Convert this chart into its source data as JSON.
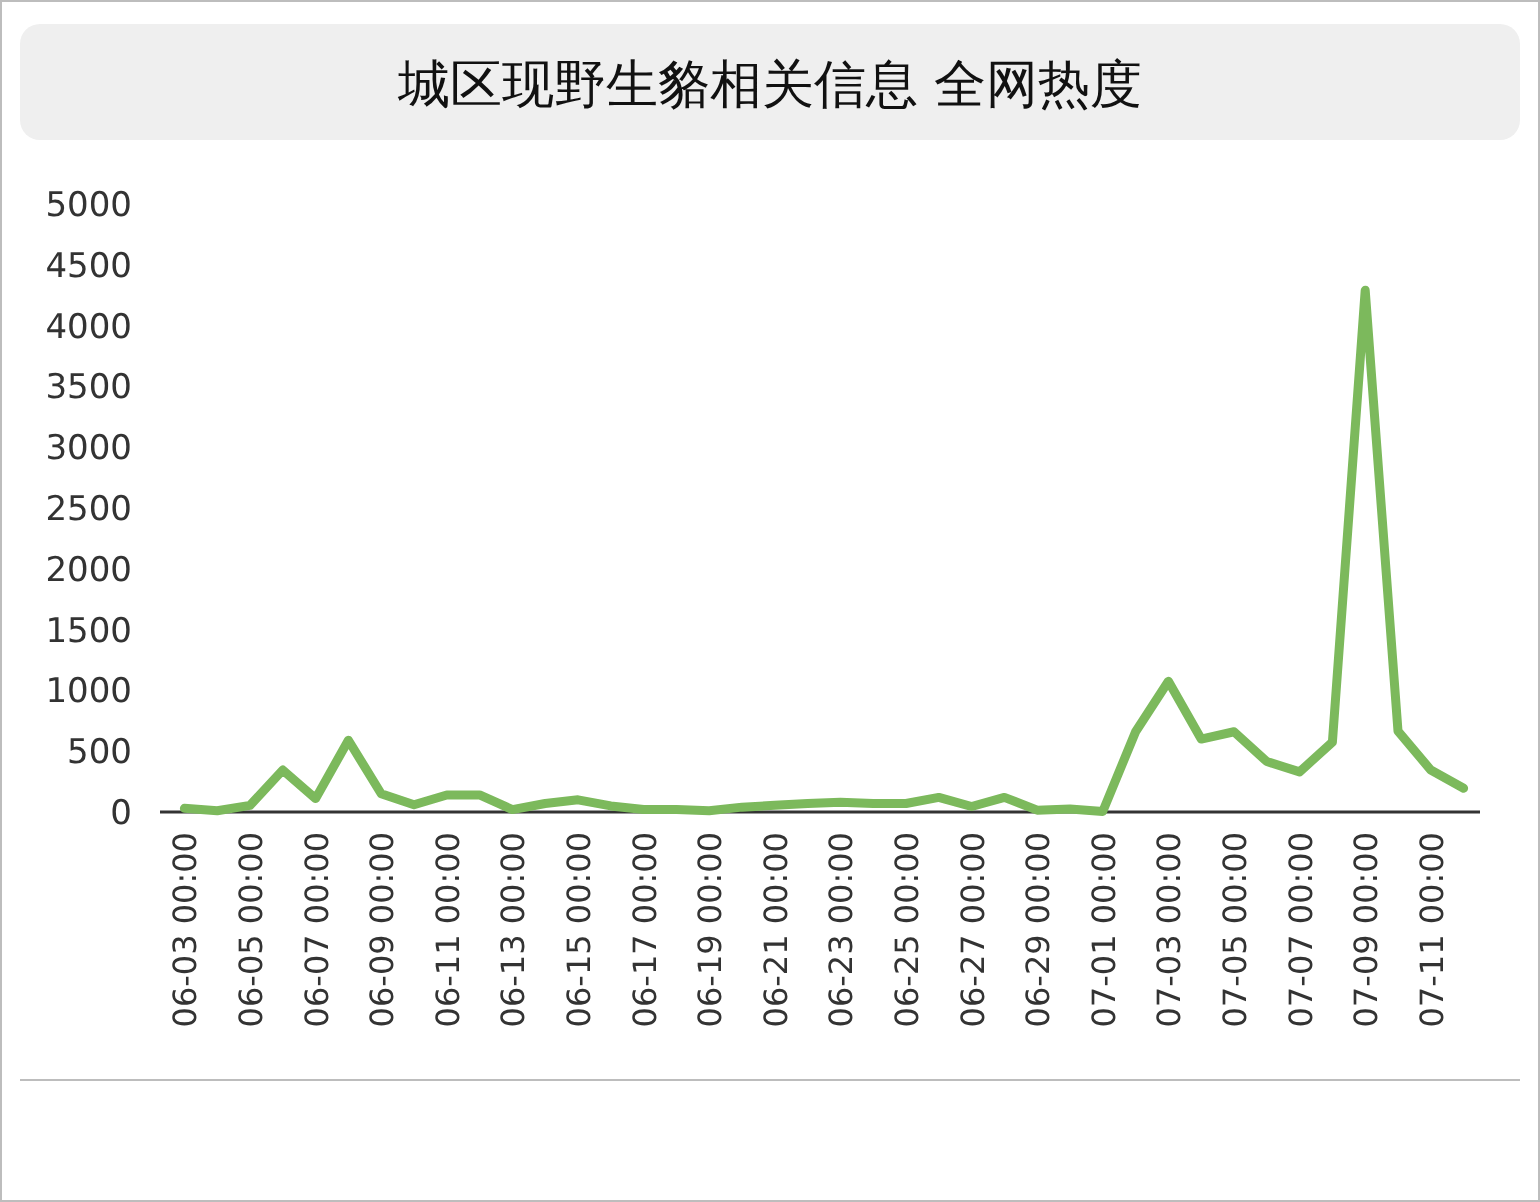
{
  "chart_data": {
    "type": "line",
    "title": "城区现野生貉相关信息 全网热度",
    "categories": [
      "06-03 00:00",
      null,
      "06-05 00:00",
      null,
      "06-07 00:00",
      null,
      "06-09 00:00",
      null,
      "06-11 00:00",
      null,
      "06-13 00:00",
      null,
      "06-15 00:00",
      null,
      "06-17 00:00",
      null,
      "06-19 00:00",
      null,
      "06-21 00:00",
      null,
      "06-23 00:00",
      null,
      "06-25 00:00",
      null,
      "06-27 00:00",
      null,
      "06-29 00:00",
      null,
      "07-01 00:00",
      null,
      "07-03 00:00",
      null,
      "07-05 00:00",
      null,
      "07-07 00:00",
      null,
      "07-09 00:00",
      null,
      "07-11 00:00",
      null
    ],
    "values": [
      30,
      10,
      55,
      345,
      110,
      590,
      150,
      60,
      140,
      140,
      20,
      70,
      100,
      50,
      20,
      20,
      10,
      40,
      55,
      70,
      80,
      70,
      70,
      120,
      45,
      120,
      15,
      25,
      5,
      660,
      1075,
      600,
      660,
      415,
      330,
      575,
      4290,
      665,
      345,
      195
    ],
    "color": "#7cb95c",
    "ylim": [
      0,
      5000
    ],
    "yticks": [
      0,
      500,
      1000,
      1500,
      2000,
      2500,
      3000,
      3500,
      4000,
      4500,
      5000
    ],
    "grid": false,
    "legend": false,
    "marker": "none",
    "line_style": "solid"
  }
}
